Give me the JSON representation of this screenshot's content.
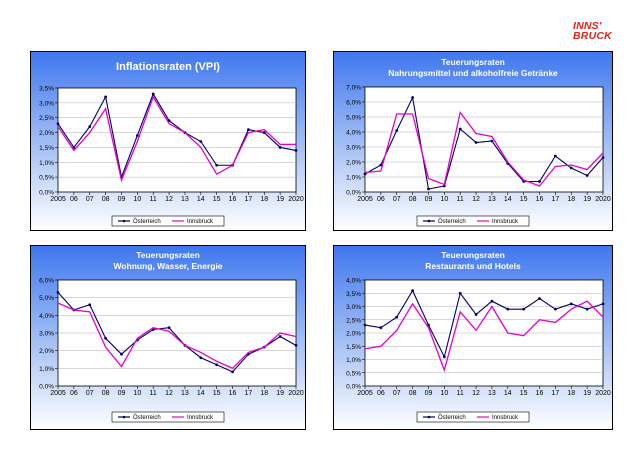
{
  "logo": {
    "line1": "INNS'",
    "line2": "BRUCK"
  },
  "colors": {
    "oesterreich": "#000066",
    "innsbruck": "#e600cc",
    "panel_top": "#3f77ee",
    "panel_bottom": "#ffffff"
  },
  "chart_data": [
    {
      "type": "line",
      "title": [
        "Inflationsraten (VPI)"
      ],
      "x": [
        "2005",
        "06",
        "07",
        "08",
        "09",
        "10",
        "11",
        "12",
        "13",
        "14",
        "15",
        "16",
        "17",
        "18",
        "19",
        "2020"
      ],
      "ylim": [
        0,
        3.5
      ],
      "yticks": [
        "0,0%",
        "0,5%",
        "1,0%",
        "1,5%",
        "2,0%",
        "2,5%",
        "3,0%",
        "3,5%"
      ],
      "grid": true,
      "legend": "bottom",
      "series": [
        {
          "name": "Österreich",
          "values": [
            2.3,
            1.5,
            2.2,
            3.2,
            0.5,
            1.9,
            3.3,
            2.4,
            2.0,
            1.7,
            0.9,
            0.9,
            2.1,
            2.0,
            1.5,
            1.4
          ]
        },
        {
          "name": "Innsbruck",
          "values": [
            2.2,
            1.4,
            2.0,
            2.8,
            0.4,
            1.7,
            3.2,
            2.3,
            2.0,
            1.5,
            0.6,
            0.9,
            2.0,
            2.1,
            1.6,
            1.6
          ]
        }
      ]
    },
    {
      "type": "line",
      "title": [
        "Teuerungsraten",
        "Nahrungsmittel und alkoholfreie Getränke"
      ],
      "x": [
        "2005",
        "06",
        "07",
        "08",
        "09",
        "10",
        "11",
        "12",
        "13",
        "14",
        "15",
        "16",
        "17",
        "18",
        "19",
        "2020"
      ],
      "ylim": [
        0,
        7
      ],
      "yticks": [
        "0,0%",
        "1,0%",
        "2,0%",
        "3,0%",
        "4,0%",
        "5,0%",
        "6,0%",
        "7,0%"
      ],
      "grid": true,
      "legend": "bottom",
      "series": [
        {
          "name": "Österreich",
          "values": [
            1.2,
            1.8,
            4.1,
            6.3,
            0.2,
            0.4,
            4.2,
            3.3,
            3.4,
            1.9,
            0.7,
            0.7,
            2.4,
            1.6,
            1.1,
            2.3
          ]
        },
        {
          "name": "Innsbruck",
          "values": [
            1.3,
            1.4,
            5.2,
            5.2,
            0.9,
            0.5,
            5.3,
            3.9,
            3.7,
            2.0,
            0.8,
            0.4,
            1.7,
            1.8,
            1.5,
            2.6
          ]
        }
      ]
    },
    {
      "type": "line",
      "title": [
        "Teuerungsraten",
        "Wohnung, Wasser, Energie"
      ],
      "x": [
        "2005",
        "06",
        "07",
        "08",
        "09",
        "10",
        "11",
        "12",
        "13",
        "14",
        "15",
        "16",
        "17",
        "18",
        "19",
        "2020"
      ],
      "ylim": [
        0,
        6
      ],
      "yticks": [
        "0,0%",
        "1,0%",
        "2,0%",
        "3,0%",
        "4,0%",
        "5,0%",
        "6,0%"
      ],
      "grid": true,
      "legend": "bottom",
      "series": [
        {
          "name": "Österreich",
          "values": [
            5.3,
            4.3,
            4.6,
            2.7,
            1.8,
            2.6,
            3.2,
            3.3,
            2.3,
            1.6,
            1.2,
            0.8,
            1.8,
            2.2,
            2.8,
            2.3
          ]
        },
        {
          "name": "Innsbruck",
          "values": [
            4.7,
            4.3,
            4.2,
            2.2,
            1.1,
            2.7,
            3.3,
            3.1,
            2.3,
            1.9,
            1.4,
            1.0,
            1.9,
            2.2,
            3.0,
            2.8
          ]
        }
      ]
    },
    {
      "type": "line",
      "title": [
        "Teuerungsraten",
        "Restaurants und Hotels"
      ],
      "x": [
        "2005",
        "06",
        "07",
        "08",
        "09",
        "10",
        "11",
        "12",
        "13",
        "14",
        "15",
        "16",
        "17",
        "18",
        "19",
        "2020"
      ],
      "ylim": [
        0,
        4
      ],
      "yticks": [
        "0,0%",
        "0,5%",
        "1,0%",
        "1,5%",
        "2,0%",
        "2,5%",
        "3,0%",
        "3,5%",
        "4,0%"
      ],
      "grid": true,
      "legend": "bottom",
      "series": [
        {
          "name": "Österreich",
          "values": [
            2.3,
            2.2,
            2.6,
            3.6,
            2.3,
            1.1,
            3.5,
            2.7,
            3.2,
            2.9,
            2.9,
            3.3,
            2.9,
            3.1,
            2.9,
            3.1
          ]
        },
        {
          "name": "Innsbruck",
          "values": [
            1.4,
            1.5,
            2.1,
            3.1,
            2.2,
            0.6,
            2.8,
            2.1,
            3.0,
            2.0,
            1.9,
            2.5,
            2.4,
            2.9,
            3.2,
            2.6
          ]
        }
      ]
    }
  ]
}
